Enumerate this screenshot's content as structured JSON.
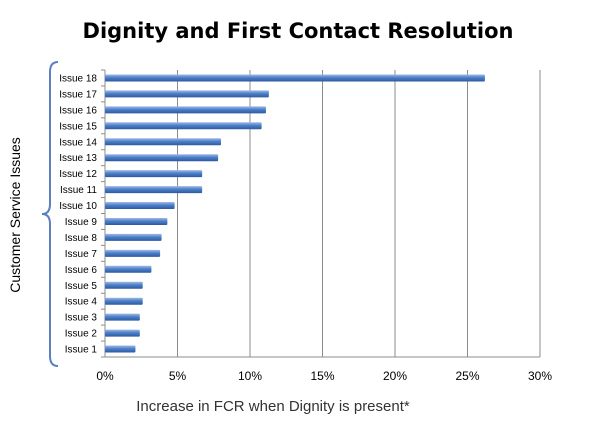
{
  "colors": {
    "bar_top": "#9fbce6",
    "bar_mid": "#4d7fc8",
    "bar_bottom": "#2c5aa0",
    "bracket": "#5b7fc0",
    "grid": "#8c8c8c",
    "text": "#000000",
    "background": "#ffffff"
  },
  "chart_data": {
    "type": "bar",
    "orientation": "horizontal",
    "title": "Dignity and First Contact Resolution",
    "xlabel": "Increase in FCR when Dignity is present*",
    "ylabel": "Customer Service Issues",
    "xlim": [
      0,
      0.3
    ],
    "x_ticks": [
      0,
      0.05,
      0.1,
      0.15,
      0.2,
      0.25,
      0.3
    ],
    "x_tick_labels": [
      "0%",
      "5%",
      "10%",
      "15%",
      "20%",
      "25%",
      "30%"
    ],
    "grid": "vertical",
    "legend": "none",
    "categories": [
      "Issue 1",
      "Issue 2",
      "Issue 3",
      "Issue 4",
      "Issue 5",
      "Issue 6",
      "Issue 7",
      "Issue 8",
      "Issue 9",
      "Issue 10",
      "Issue 11",
      "Issue 12",
      "Issue 13",
      "Issue 14",
      "Issue 15",
      "Issue 16",
      "Issue 17",
      "Issue 18"
    ],
    "values": [
      0.021,
      0.024,
      0.024,
      0.026,
      0.026,
      0.032,
      0.038,
      0.039,
      0.043,
      0.048,
      0.067,
      0.067,
      0.078,
      0.08,
      0.108,
      0.111,
      0.113,
      0.262
    ]
  }
}
